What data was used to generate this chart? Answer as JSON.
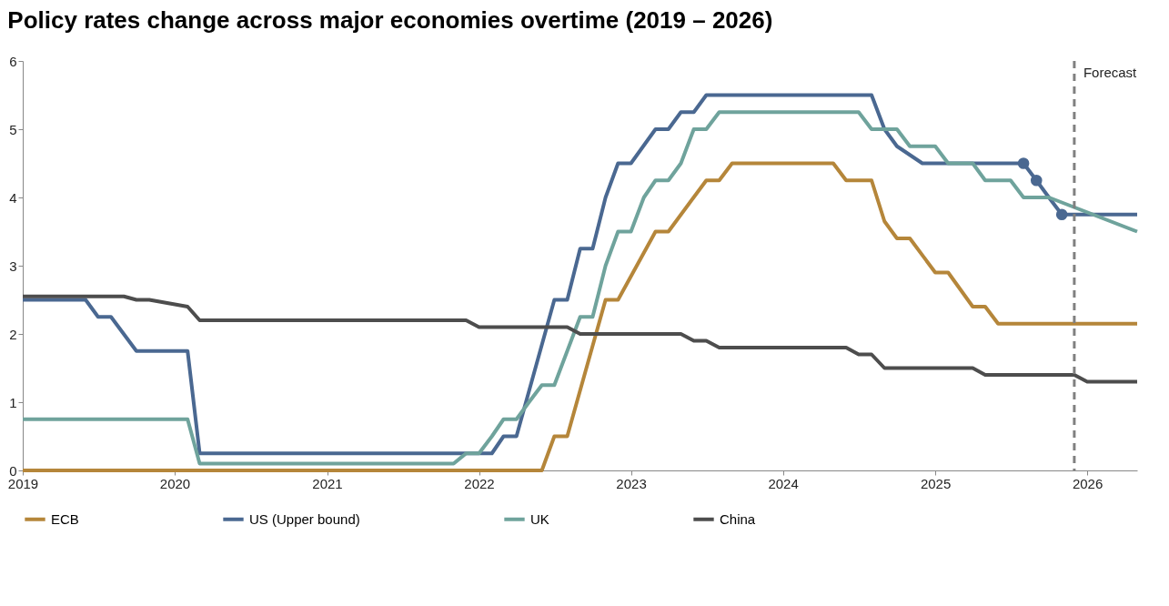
{
  "chart_data": {
    "type": "line",
    "title": "Policy rates change across major economies overtime (2019 – 2026)",
    "xlim": [
      "2019-01",
      "2026-05"
    ],
    "xticks": [
      "2019",
      "2020",
      "2021",
      "2022",
      "2023",
      "2024",
      "2025",
      "2026"
    ],
    "ylim": [
      0,
      6
    ],
    "yticks": [
      0,
      1,
      2,
      3,
      4,
      5,
      6
    ],
    "grid": false,
    "legend": "bottom",
    "line_style": "solid",
    "marker": "none",
    "series": [
      {
        "name": "ECB",
        "color": "#b5863a",
        "x": [
          "2019-01",
          "2022-06",
          "2022-07",
          "2022-08",
          "2022-11",
          "2022-12",
          "2023-03",
          "2023-04",
          "2023-07",
          "2023-08",
          "2023-09",
          "2024-05",
          "2024-06",
          "2024-08",
          "2024-09",
          "2024-10",
          "2024-11",
          "2025-01",
          "2025-02",
          "2025-04",
          "2025-05",
          "2025-06",
          "2026-05"
        ],
        "values": [
          0,
          0,
          0.5,
          0.5,
          2.5,
          2.5,
          3.5,
          3.5,
          4.25,
          4.25,
          4.5,
          4.5,
          4.25,
          4.25,
          3.65,
          3.4,
          3.4,
          2.9,
          2.9,
          2.4,
          2.4,
          2.15,
          2.15
        ]
      },
      {
        "name": "US (Upper bound)",
        "color": "#4a6891",
        "x": [
          "2019-01",
          "2019-06",
          "2019-07",
          "2019-08",
          "2019-10",
          "2020-02",
          "2020-03",
          "2022-02",
          "2022-03",
          "2022-04",
          "2022-07",
          "2022-08",
          "2022-09",
          "2022-10",
          "2022-11",
          "2022-12",
          "2023-01",
          "2023-03",
          "2023-04",
          "2023-05",
          "2023-06",
          "2023-07",
          "2024-08",
          "2024-09",
          "2024-10",
          "2024-12",
          "2025-08",
          "2025-09",
          "2025-10",
          "2025-11",
          "2026-05"
        ],
        "values": [
          2.5,
          2.5,
          2.25,
          2.25,
          1.75,
          1.75,
          0.25,
          0.25,
          0.5,
          0.5,
          2.5,
          2.5,
          3.25,
          3.25,
          4.0,
          4.5,
          4.5,
          5.0,
          5.0,
          5.25,
          5.25,
          5.5,
          5.5,
          5.0,
          4.75,
          4.5,
          4.5,
          4.25,
          4.0,
          3.75,
          3.75
        ]
      },
      {
        "name": "UK",
        "color": "#6fa39c",
        "x": [
          "2019-01",
          "2020-02",
          "2020-03",
          "2021-11",
          "2021-12",
          "2022-01",
          "2022-02",
          "2022-03",
          "2022-04",
          "2022-05",
          "2022-06",
          "2022-07",
          "2022-08",
          "2022-09",
          "2022-10",
          "2022-11",
          "2022-12",
          "2023-01",
          "2023-02",
          "2023-03",
          "2023-04",
          "2023-05",
          "2023-06",
          "2023-07",
          "2023-08",
          "2024-07",
          "2024-08",
          "2024-10",
          "2024-11",
          "2025-01",
          "2025-02",
          "2025-04",
          "2025-05",
          "2025-07",
          "2025-08",
          "2025-10",
          "2026-05"
        ],
        "values": [
          0.75,
          0.75,
          0.1,
          0.1,
          0.25,
          0.25,
          0.5,
          0.75,
          0.75,
          1.0,
          1.25,
          1.25,
          1.75,
          2.25,
          2.25,
          3.0,
          3.5,
          3.5,
          4.0,
          4.25,
          4.25,
          4.5,
          5.0,
          5.0,
          5.25,
          5.25,
          5.0,
          5.0,
          4.75,
          4.75,
          4.5,
          4.5,
          4.25,
          4.25,
          4.0,
          4.0,
          3.5
        ]
      },
      {
        "name": "China",
        "color": "#4d4d4d",
        "x": [
          "2019-01",
          "2019-09",
          "2019-10",
          "2019-11",
          "2020-02",
          "2020-03",
          "2021-12",
          "2022-01",
          "2022-08",
          "2022-09",
          "2023-05",
          "2023-06",
          "2023-07",
          "2023-08",
          "2024-06",
          "2024-07",
          "2024-08",
          "2024-09",
          "2025-04",
          "2025-05",
          "2025-12",
          "2026-01",
          "2026-05"
        ],
        "values": [
          2.55,
          2.55,
          2.5,
          2.5,
          2.4,
          2.2,
          2.2,
          2.1,
          2.1,
          2.0,
          2.0,
          1.9,
          1.9,
          1.8,
          1.8,
          1.7,
          1.7,
          1.5,
          1.5,
          1.4,
          1.4,
          1.3,
          1.3
        ]
      },
      {
        "type": "scatter",
        "marker": "circle",
        "color": "#4a6891",
        "x": [
          "2025-08",
          "2025-09",
          "2025-11"
        ],
        "values": [
          4.5,
          4.25,
          3.75
        ]
      }
    ],
    "ref_lines": [
      {
        "axis": "x",
        "value": "2025-12",
        "label": "Forecast",
        "color": "#808080",
        "line_style": "dashed"
      }
    ]
  }
}
